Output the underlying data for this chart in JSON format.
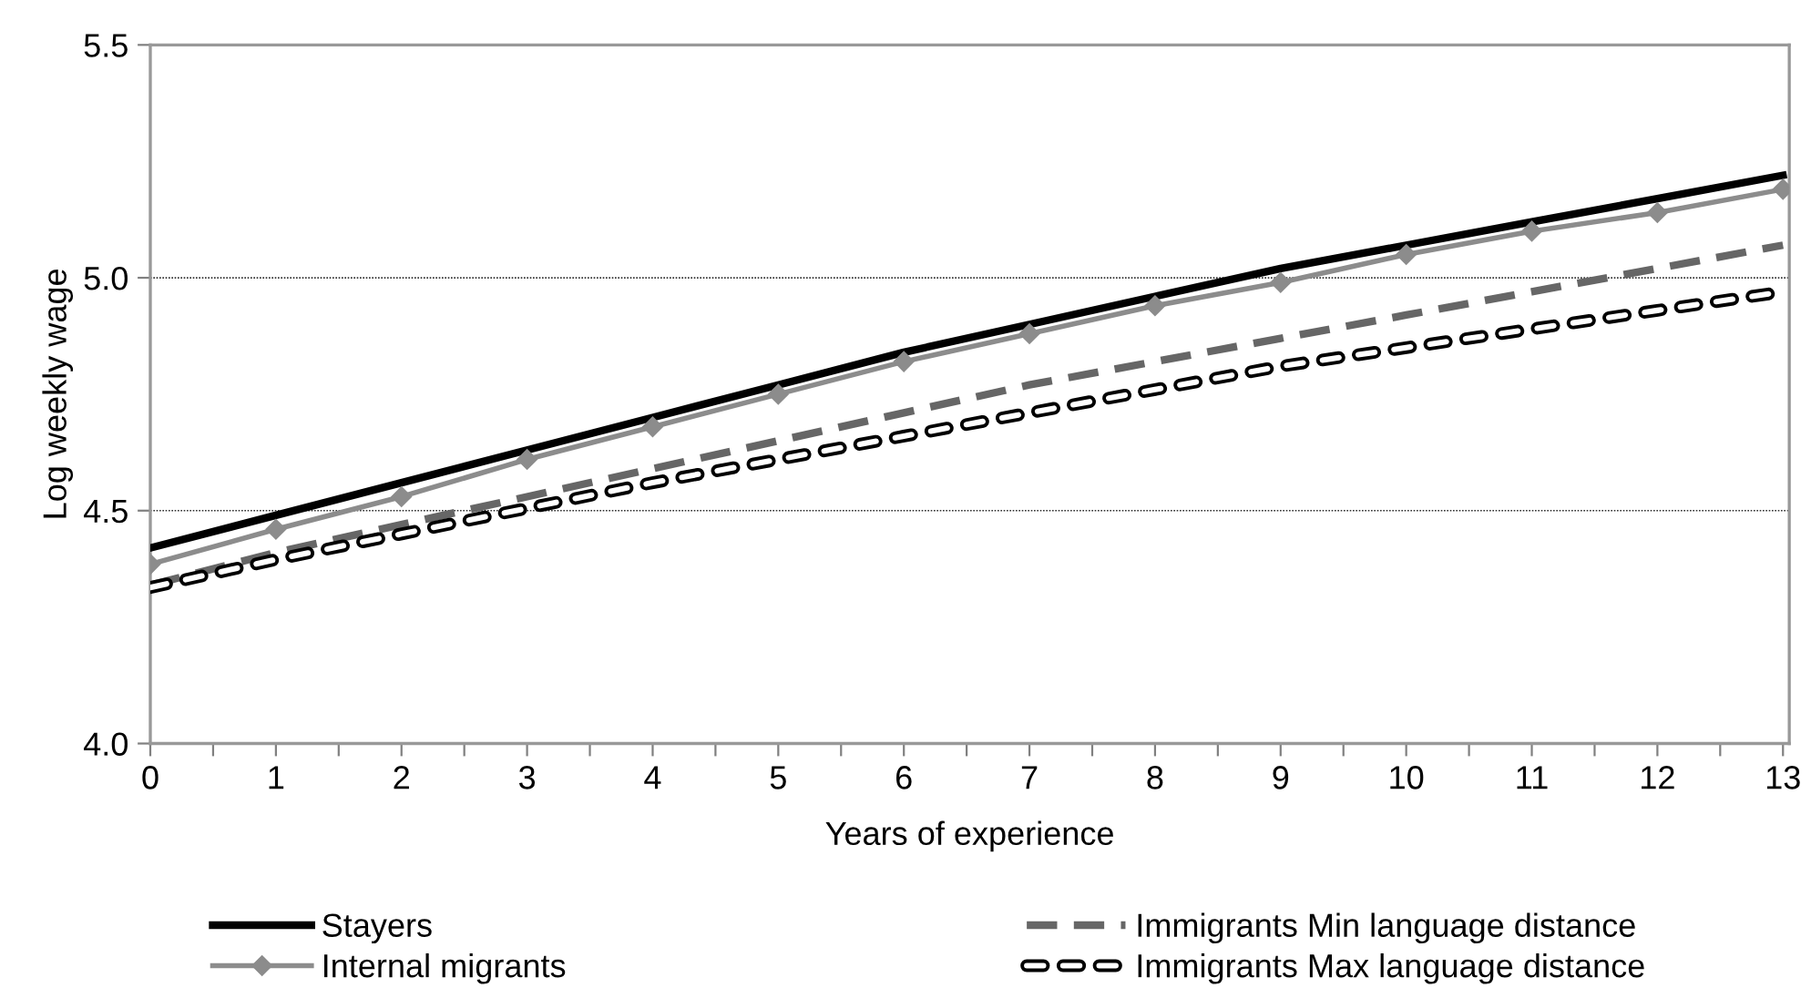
{
  "chart_data": {
    "type": "line",
    "xlabel": "Years of experience",
    "ylabel": "Log weekly wage",
    "x": [
      0,
      1,
      2,
      3,
      4,
      5,
      6,
      7,
      8,
      9,
      10,
      11,
      12,
      13
    ],
    "series": [
      {
        "name": "Stayers",
        "color": "#000000",
        "line_style": "solid",
        "marker": "none",
        "values": [
          4.42,
          4.49,
          4.56,
          4.63,
          4.7,
          4.77,
          4.84,
          4.9,
          4.96,
          5.02,
          5.07,
          5.12,
          5.17,
          5.22
        ]
      },
      {
        "name": "Internal migrants",
        "color": "#8c8c8c",
        "line_style": "solid",
        "marker": "diamond",
        "values": [
          4.385,
          4.46,
          4.53,
          4.61,
          4.68,
          4.75,
          4.82,
          4.88,
          4.94,
          4.99,
          5.05,
          5.1,
          5.14,
          5.19
        ]
      },
      {
        "name": "Immigrants Min language distance",
        "color": "#666666",
        "line_style": "dashed",
        "marker": "none",
        "values": [
          4.34,
          4.41,
          4.47,
          4.53,
          4.59,
          4.65,
          4.71,
          4.77,
          4.82,
          4.87,
          4.92,
          4.97,
          5.02,
          5.07
        ]
      },
      {
        "name": "Immigrants Max language distance",
        "color": "#000000",
        "line_style": "hollow dashed",
        "marker": "none",
        "values": [
          4.335,
          4.395,
          4.45,
          4.505,
          4.56,
          4.61,
          4.66,
          4.71,
          4.76,
          4.81,
          4.85,
          4.89,
          4.93,
          4.97
        ]
      }
    ],
    "xlim": [
      0,
      13.05
    ],
    "xticks": [
      0,
      {
        "value": 0.5,
        "label": null
      },
      1,
      {
        "value": 1.5,
        "label": null
      },
      2,
      {
        "value": 2.5,
        "label": null
      },
      3,
      {
        "value": 3.5,
        "label": null
      },
      4,
      {
        "value": 4.5,
        "label": null
      },
      5,
      {
        "value": 5.5,
        "label": null
      },
      6,
      {
        "value": 6.5,
        "label": null
      },
      7,
      {
        "value": 7.5,
        "label": null
      },
      8,
      {
        "value": 8.5,
        "label": null
      },
      9,
      {
        "value": 9.5,
        "label": null
      },
      10,
      {
        "value": 10.5,
        "label": null
      },
      11,
      {
        "value": 11.5,
        "label": null
      },
      12,
      {
        "value": 12.5,
        "label": null
      },
      13
    ],
    "ylim": [
      4.0,
      5.5
    ],
    "yticks": [
      {
        "value": 4.0,
        "label": "4.0"
      },
      {
        "value": 4.5,
        "label": "4.5"
      },
      {
        "value": 5.0,
        "label": "5.0"
      },
      {
        "value": 5.5,
        "label": "5.5"
      }
    ],
    "grid": "y",
    "legend": "bottom"
  }
}
